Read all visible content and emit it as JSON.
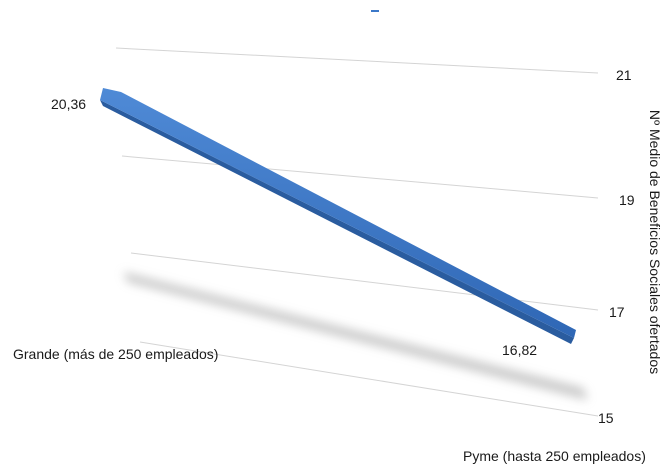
{
  "chart_data": {
    "type": "line",
    "categories": [
      "Grande (más de 250 empleados)",
      "Pyme (hasta 250 empleados)"
    ],
    "series": [
      {
        "values": [
          20.36,
          16.82
        ],
        "color": "#3b78c8"
      }
    ],
    "data_labels": [
      "20,36",
      "16,82"
    ],
    "ylabel": "Nº Medio de Beneficios Sociales ofertados",
    "ylim": [
      15,
      21
    ],
    "yticks": [
      "15",
      "17",
      "19",
      "21"
    ],
    "grid": true,
    "legend": "top-center",
    "style": "3d-perspective"
  }
}
